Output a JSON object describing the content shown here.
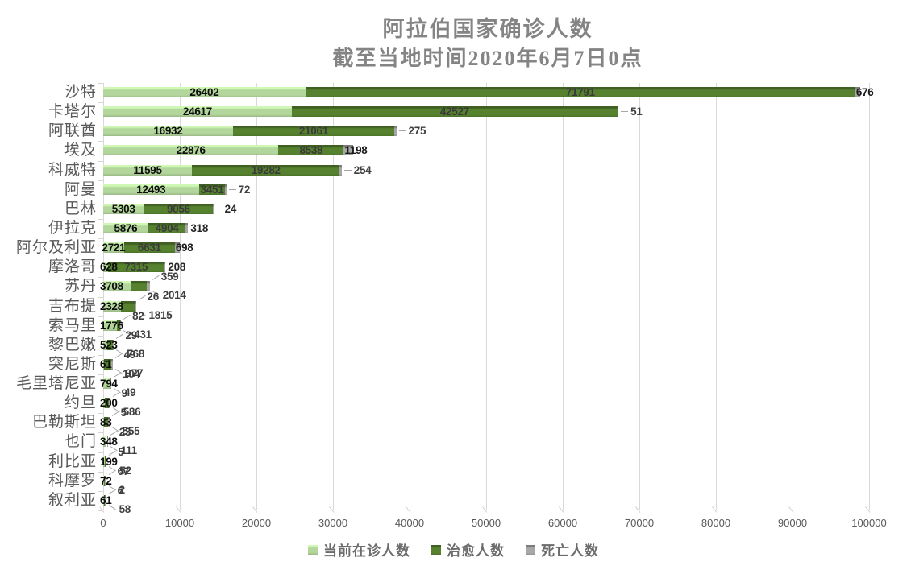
{
  "title": {
    "line1": "阿拉伯国家确诊人数",
    "line2": "截至当地时间2020年6月7日0点"
  },
  "colors": {
    "active": "#b3d69c",
    "cured": "#56812f",
    "deaths": "#a8a8a8",
    "grid": "#d9d9d9",
    "title_text": "#848484",
    "axis_text": "#595959",
    "legend_text": "#6b6b6b",
    "label_on_light": "#0d0d0d",
    "label_on_dark": "#3a3a3a",
    "label_callout": "#3f3f3f"
  },
  "legend": {
    "items": [
      {
        "key": "active",
        "label": "当前在诊人数"
      },
      {
        "key": "cured",
        "label": "治愈人数"
      },
      {
        "key": "deaths",
        "label": "死亡人数"
      }
    ]
  },
  "chart_data": {
    "type": "bar",
    "orientation": "horizontal",
    "stacked": true,
    "title": "阿拉伯国家确诊人数",
    "subtitle": "截至当地时间2020年6月7日0点",
    "xlabel": "",
    "ylabel": "",
    "xlim": [
      0,
      100000
    ],
    "x_ticks": [
      0,
      10000,
      20000,
      30000,
      40000,
      50000,
      60000,
      70000,
      80000,
      90000,
      100000
    ],
    "grid": true,
    "legend_position": "bottom",
    "categories": [
      "沙特",
      "卡塔尔",
      "阿联酋",
      "埃及",
      "科威特",
      "阿曼",
      "巴林",
      "伊拉克",
      "阿尔及利亚",
      "摩洛哥",
      "苏丹",
      "吉布提",
      "索马里",
      "黎巴嫩",
      "突尼斯",
      "毛里塔尼亚",
      "约旦",
      "巴勒斯坦",
      "也门",
      "利比亚",
      "科摩罗",
      "叙利亚"
    ],
    "series": [
      {
        "name": "当前在诊人数",
        "key": "active",
        "values": [
          26402,
          24617,
          16932,
          22876,
          11595,
          12493,
          5303,
          5876,
          2721,
          628,
          3708,
          2328,
          1776,
          523,
          61,
          794,
          200,
          83,
          348,
          199,
          72,
          61
        ]
      },
      {
        "name": "治愈人数",
        "key": "cured",
        "values": [
          71791,
          42527,
          21061,
          8538,
          19282,
          3451,
          9056,
          4904,
          6631,
          7315,
          2014,
          1815,
          431,
          768,
          977,
          104,
          586,
          555,
          23,
          52,
          67,
          58
        ]
      },
      {
        "name": "死亡人数",
        "key": "deaths",
        "values": [
          676,
          51,
          275,
          1198,
          254,
          72,
          24,
          318,
          698,
          208,
          359,
          26,
          82,
          29,
          49,
          49,
          9,
          5,
          111,
          5,
          2,
          6
        ]
      }
    ],
    "label_layout": [
      {
        "active": "in",
        "cured": "in",
        "deaths": "at_gray"
      },
      {
        "active": "in",
        "cured": "in",
        "deaths": "leader"
      },
      {
        "active": "in",
        "cured": "in",
        "deaths": "leader"
      },
      {
        "active": "in",
        "cured": "in",
        "deaths": "at_gray"
      },
      {
        "active": "in",
        "cured": "in",
        "deaths": "leader"
      },
      {
        "active": "in",
        "cured": "in",
        "deaths": "leader"
      },
      {
        "active": "in",
        "cured": "in",
        "deaths": "gap"
      },
      {
        "active": "in",
        "cured": "in",
        "deaths": "end"
      },
      {
        "active": "in",
        "cured": "in",
        "deaths": "at_gray"
      },
      {
        "active": "left",
        "cured": "in",
        "deaths": "end"
      },
      {
        "active": "left",
        "cured": "below",
        "deaths": "above"
      },
      {
        "active": "left",
        "cured": "below",
        "deaths": "above"
      },
      {
        "active": "left",
        "cured": "below",
        "deaths": "above"
      },
      {
        "active": "left",
        "cured": "below",
        "deaths": "above"
      },
      {
        "active": "left",
        "cured": "below",
        "deaths": "above"
      },
      {
        "active": "left",
        "cured": "above",
        "deaths": "below"
      },
      {
        "active": "left",
        "cured": "below",
        "deaths": "above"
      },
      {
        "active": "left",
        "cured": "below",
        "deaths": "above"
      },
      {
        "active": "left",
        "cured": "above",
        "deaths": "below"
      },
      {
        "active": "left",
        "cured": "below",
        "deaths": "above"
      },
      {
        "active": "left",
        "cured": "above",
        "deaths": "below"
      },
      {
        "active": "left",
        "cured": "below",
        "deaths": "above"
      }
    ]
  }
}
